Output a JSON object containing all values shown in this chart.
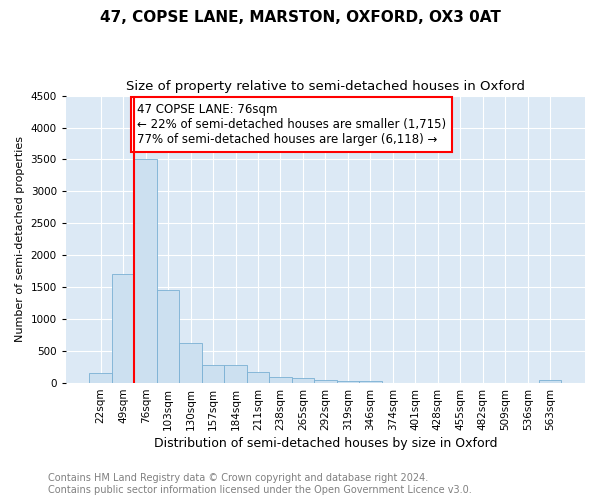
{
  "title": "47, COPSE LANE, MARSTON, OXFORD, OX3 0AT",
  "subtitle": "Size of property relative to semi-detached houses in Oxford",
  "xlabel": "Distribution of semi-detached houses by size in Oxford",
  "ylabel": "Number of semi-detached properties",
  "categories": [
    "22sqm",
    "49sqm",
    "76sqm",
    "103sqm",
    "130sqm",
    "157sqm",
    "184sqm",
    "211sqm",
    "238sqm",
    "265sqm",
    "292sqm",
    "319sqm",
    "346sqm",
    "374sqm",
    "401sqm",
    "428sqm",
    "455sqm",
    "482sqm",
    "509sqm",
    "536sqm",
    "563sqm"
  ],
  "values": [
    150,
    1700,
    3500,
    1450,
    625,
    275,
    275,
    175,
    100,
    80,
    55,
    40,
    30,
    0,
    0,
    0,
    0,
    0,
    0,
    0,
    55
  ],
  "bar_color": "#cce0f0",
  "bar_edge_color": "#7ab0d4",
  "vline_color": "red",
  "vline_bar_index": 2,
  "annotation_text": "47 COPSE LANE: 76sqm\n← 22% of semi-detached houses are smaller (1,715)\n77% of semi-detached houses are larger (6,118) →",
  "annotation_box_color": "white",
  "annotation_box_edge_color": "red",
  "ylim": [
    0,
    4500
  ],
  "yticks": [
    0,
    500,
    1000,
    1500,
    2000,
    2500,
    3000,
    3500,
    4000,
    4500
  ],
  "footer": "Contains HM Land Registry data © Crown copyright and database right 2024.\nContains public sector information licensed under the Open Government Licence v3.0.",
  "plot_bg_color": "#dce9f5",
  "grid_color": "white",
  "title_fontsize": 11,
  "subtitle_fontsize": 9.5,
  "ylabel_fontsize": 8,
  "xlabel_fontsize": 9,
  "tick_fontsize": 7.5,
  "footer_fontsize": 7,
  "annotation_fontsize": 8.5
}
